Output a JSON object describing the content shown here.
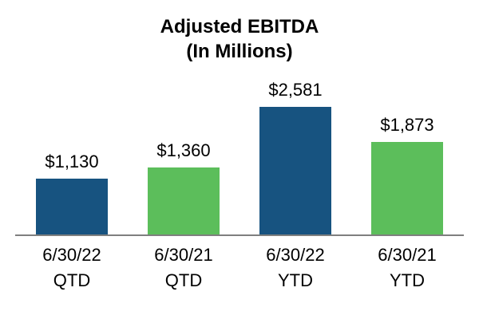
{
  "title": {
    "line1": "Adjusted EBITDA",
    "line2": "(In Millions)"
  },
  "chart_data": {
    "type": "bar",
    "title": "Adjusted EBITDA (In Millions)",
    "categories": [
      "6/30/22 QTD",
      "6/30/21 QTD",
      "6/30/22 YTD",
      "6/30/21 YTD"
    ],
    "values": [
      1130,
      1360,
      2581,
      1873
    ],
    "data_labels": [
      "$1,130",
      "$1,360",
      "$2,581",
      "$1,873"
    ],
    "bar_colors": [
      "#175380",
      "#5cbe5b",
      "#175380",
      "#5cbe5b"
    ],
    "x_tick_labels": [
      [
        "6/30/22",
        "QTD"
      ],
      [
        "6/30/21",
        "QTD"
      ],
      [
        "6/30/22",
        "YTD"
      ],
      [
        "6/30/21",
        "YTD"
      ]
    ],
    "xlabel": "",
    "ylabel": "",
    "ylim": [
      0,
      2700
    ],
    "grid": false,
    "legend": "none",
    "axis_line_color": "#7f7f7f"
  }
}
